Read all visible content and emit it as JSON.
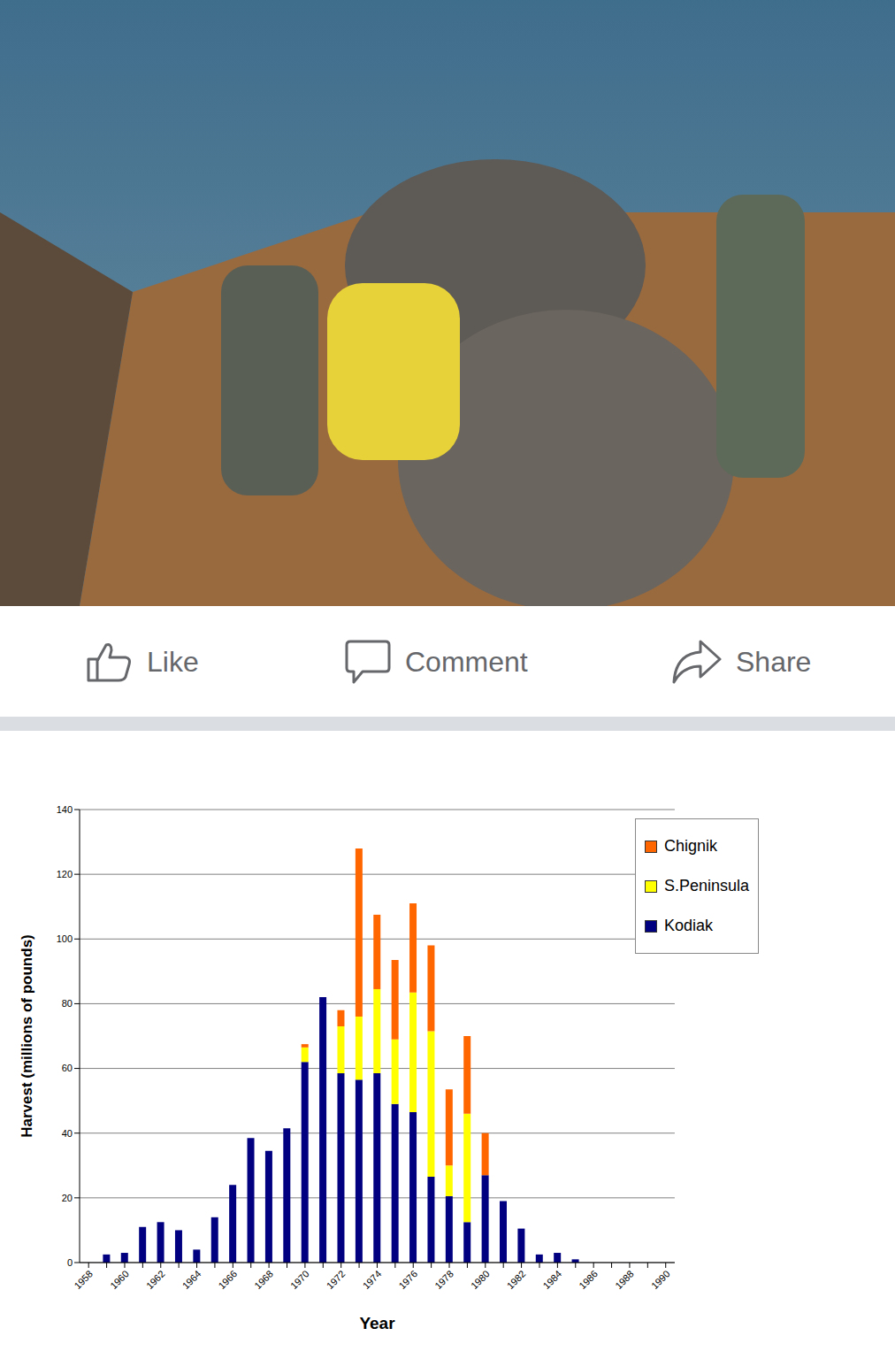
{
  "toolbar": [
    "Like",
    "Comment",
    "Share"
  ],
  "chart_data": {
    "type": "bar",
    "stacked": true,
    "grid": true,
    "legend": "top-right",
    "x_label": "Year",
    "y_label": "Harvest (millions of pounds)",
    "categories": [
      "1958",
      null,
      "1960",
      null,
      "1962",
      null,
      "1964",
      null,
      "1966",
      null,
      "1968",
      null,
      "1970",
      null,
      "1972",
      null,
      "1974",
      null,
      "1976",
      null,
      "1978",
      null,
      "1980",
      null,
      "1982",
      null,
      "1984",
      null,
      "1986",
      null,
      "1988",
      null,
      "1990"
    ],
    "series": [
      {
        "name": "Kodiak",
        "color": "#000080",
        "values": [
          null,
          2.5,
          3,
          11,
          12.5,
          10,
          4,
          14,
          24,
          38.5,
          34.5,
          41.5,
          62,
          82,
          58.5,
          56.5,
          58.5,
          49,
          46.5,
          26.5,
          20.5,
          12.5,
          27,
          19,
          10.5,
          2.5,
          3,
          1,
          null,
          null,
          null,
          null,
          null
        ]
      },
      {
        "name": "S.Peninsula",
        "color": "#FFFF00",
        "values": [
          null,
          null,
          null,
          null,
          null,
          null,
          null,
          null,
          null,
          null,
          null,
          null,
          4.5,
          null,
          14.5,
          19.5,
          26,
          20,
          37,
          45,
          9.5,
          33.5,
          null,
          null,
          null,
          null,
          null,
          null,
          null,
          null,
          null,
          null,
          null
        ]
      },
      {
        "name": "Chignik",
        "color": "#FF6600",
        "values": [
          null,
          null,
          null,
          null,
          null,
          null,
          null,
          null,
          null,
          null,
          null,
          null,
          1,
          null,
          5,
          52,
          23,
          24.5,
          27.5,
          26.5,
          23.5,
          24,
          13,
          null,
          null,
          null,
          null,
          null,
          null,
          null,
          null,
          null,
          null
        ]
      }
    ],
    "ylim": [
      0,
      140
    ],
    "yticks": [
      0,
      20,
      40,
      60,
      80,
      100,
      120,
      140
    ]
  }
}
